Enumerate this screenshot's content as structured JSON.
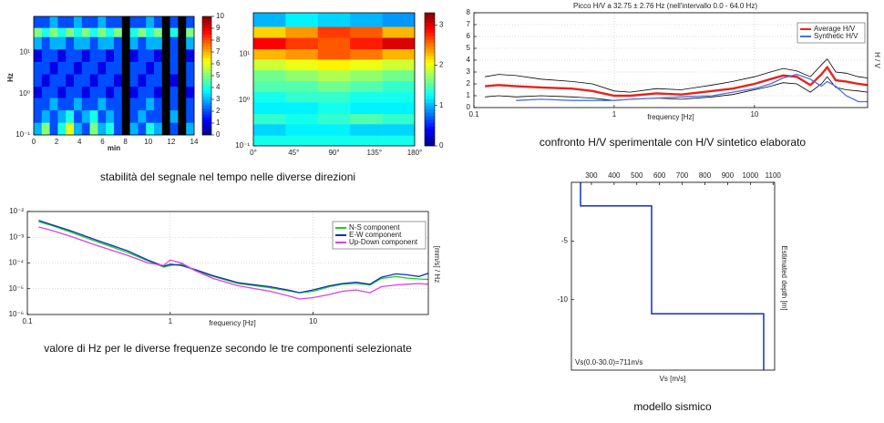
{
  "captions": [
    "stabilità del segnale nel tempo nelle diverse direzioni",
    "confronto H/V sperimentale con H/V sintetico elaborato",
    "valore di Hz per le diverse frequenze secondo le tre componenti selezionate",
    "modello sismico"
  ],
  "chart_data": [
    {
      "type": "heatmap",
      "xlabel": "min",
      "ylabel": "Hz",
      "xlim": [
        0,
        14
      ],
      "xticks": [
        0,
        2,
        4,
        6,
        8,
        10,
        12,
        14
      ],
      "ylim": [
        0.1,
        75
      ],
      "ylog": true,
      "yticks": [
        {
          "value": 0.1,
          "label": "10⁻¹"
        },
        {
          "value": 1,
          "label": "10⁰"
        },
        {
          "value": 10,
          "label": "10¹"
        }
      ],
      "x_bins": [
        0,
        0.7,
        1.4,
        2.1,
        2.8,
        3.5,
        4.2,
        4.9,
        5.6,
        6.3,
        7,
        7.7,
        8.4,
        9.1,
        9.8,
        10.5,
        11.2,
        11.9,
        12.6,
        13.3,
        14
      ],
      "y_bins": [
        0.1,
        0.2,
        0.4,
        0.8,
        1.5,
        3,
        6,
        12,
        24,
        40,
        75
      ],
      "z": [
        [
          3,
          5,
          2,
          4,
          6,
          3,
          2,
          5,
          3,
          4,
          2,
          null,
          3,
          2,
          4,
          3,
          null,
          2,
          null,
          3
        ],
        [
          2,
          3,
          2,
          3,
          4,
          2,
          3,
          4,
          2,
          3,
          2,
          null,
          2,
          3,
          2,
          2,
          null,
          3,
          null,
          2
        ],
        [
          2,
          2,
          3,
          2,
          2,
          3,
          2,
          2,
          3,
          2,
          2,
          null,
          2,
          2,
          3,
          2,
          null,
          2,
          null,
          2
        ],
        [
          1,
          2,
          2,
          1,
          2,
          2,
          1,
          2,
          2,
          1,
          2,
          null,
          1,
          2,
          2,
          1,
          null,
          2,
          null,
          1
        ],
        [
          2,
          1,
          2,
          2,
          1,
          2,
          2,
          1,
          2,
          2,
          1,
          null,
          2,
          1,
          2,
          2,
          null,
          1,
          null,
          2
        ],
        [
          2,
          2,
          1,
          2,
          2,
          1,
          2,
          2,
          1,
          2,
          2,
          null,
          2,
          2,
          1,
          2,
          null,
          2,
          null,
          2
        ],
        [
          1,
          2,
          2,
          1,
          2,
          2,
          1,
          2,
          2,
          1,
          2,
          null,
          1,
          2,
          2,
          1,
          null,
          2,
          null,
          1
        ],
        [
          3,
          2,
          3,
          3,
          2,
          3,
          3,
          2,
          3,
          3,
          2,
          null,
          3,
          2,
          3,
          3,
          null,
          2,
          null,
          3
        ],
        [
          5,
          4,
          5,
          4,
          5,
          4,
          5,
          4,
          5,
          4,
          5,
          null,
          4,
          5,
          4,
          5,
          null,
          4,
          null,
          5
        ],
        [
          2,
          2,
          3,
          2,
          2,
          3,
          2,
          2,
          3,
          2,
          2,
          null,
          2,
          2,
          3,
          2,
          null,
          2,
          null,
          2
        ]
      ],
      "zlim": [
        0,
        10
      ],
      "zticks": [
        0,
        1,
        2,
        3,
        4,
        5,
        6,
        7,
        8,
        9,
        10
      ],
      "colormap": "jet",
      "missing_color": "#000000"
    },
    {
      "type": "heatmap",
      "xlim": [
        0,
        180
      ],
      "xticks": [
        {
          "value": 0,
          "label": "0°"
        },
        {
          "value": 45,
          "label": "45°"
        },
        {
          "value": 90,
          "label": "90°"
        },
        {
          "value": 135,
          "label": "135°"
        },
        {
          "value": 180,
          "label": "180°"
        }
      ],
      "ylim": [
        0.1,
        80
      ],
      "ylog": true,
      "yticks": [
        {
          "value": 0.1,
          "label": "10⁻¹"
        },
        {
          "value": 1,
          "label": "10⁰"
        },
        {
          "value": 10,
          "label": "10¹"
        }
      ],
      "x_bins": [
        0,
        36,
        72,
        108,
        144,
        180
      ],
      "y_bins": [
        0.1,
        0.17,
        0.3,
        0.5,
        0.9,
        1.5,
        2.6,
        4.5,
        7.7,
        13,
        23,
        40,
        80
      ],
      "z": [
        [
          1.3,
          1.3,
          1.3,
          1.3,
          1.3
        ],
        [
          1.1,
          1.2,
          1.2,
          1.1,
          1.1
        ],
        [
          1.4,
          1.3,
          1.4,
          1.5,
          1.4
        ],
        [
          1.2,
          1.2,
          1.3,
          1.2,
          1.2
        ],
        [
          1.3,
          1.4,
          1.4,
          1.3,
          1.3
        ],
        [
          1.5,
          1.5,
          1.6,
          1.5,
          1.4
        ],
        [
          1.6,
          1.7,
          1.8,
          1.7,
          1.6
        ],
        [
          1.9,
          2.0,
          2.1,
          2.0,
          1.9
        ],
        [
          2.3,
          2.4,
          2.6,
          2.5,
          2.3
        ],
        [
          2.9,
          2.7,
          2.6,
          2.8,
          3.0
        ],
        [
          2.2,
          2.4,
          2.7,
          2.6,
          2.3
        ],
        [
          1.0,
          1.2,
          1.1,
          1.0,
          0.9
        ]
      ],
      "zlim": [
        0,
        3.3
      ],
      "zticks": [
        0,
        1,
        2,
        3
      ],
      "colormap": "jet"
    },
    {
      "type": "line",
      "title": "Picco H/V a 32.75 ± 2.76 Hz (nell'intervallo 0.0 - 64.0 Hz)",
      "xlabel": "frequency [Hz]",
      "ylabel": "H / V",
      "xlim": [
        0.1,
        64
      ],
      "xlog": true,
      "xticks": [
        0.1,
        1,
        10
      ],
      "ylim": [
        0,
        8
      ],
      "yticks": [
        0,
        1,
        2,
        3,
        4,
        5,
        6,
        7,
        8
      ],
      "grid": true,
      "legend": "upper right",
      "x": [
        0.12,
        0.15,
        0.2,
        0.3,
        0.5,
        0.7,
        1,
        1.3,
        2,
        3,
        5,
        7,
        10,
        13,
        16,
        20,
        25,
        30,
        33,
        38,
        45,
        55,
        64
      ],
      "series": [
        {
          "color": "#000000",
          "values": [
            2.6,
            2.8,
            2.7,
            2.4,
            2.2,
            2.0,
            1.4,
            1.3,
            1.6,
            1.5,
            1.9,
            2.2,
            2.6,
            3.0,
            3.3,
            3.1,
            2.6,
            3.6,
            4.1,
            3.0,
            2.9,
            2.6,
            2.5
          ]
        },
        {
          "color": "#000000",
          "values": [
            0.9,
            1.0,
            0.9,
            1.0,
            0.9,
            0.8,
            0.6,
            0.7,
            0.8,
            0.7,
            0.9,
            1.1,
            1.5,
            1.8,
            2.1,
            2.0,
            1.3,
            2.0,
            2.6,
            1.7,
            1.5,
            1.4,
            1.3
          ]
        },
        {
          "name": "Average H/V",
          "color": "#e8231c",
          "values": [
            1.8,
            1.9,
            1.8,
            1.7,
            1.6,
            1.4,
            1.0,
            1.0,
            1.2,
            1.1,
            1.4,
            1.6,
            2.0,
            2.4,
            2.7,
            2.6,
            1.9,
            2.8,
            3.4,
            2.3,
            2.2,
            2.0,
            1.9
          ]
        },
        {
          "name": "Synthetic H/V",
          "color": "#4a6fe3",
          "values": [
            null,
            null,
            0.6,
            0.7,
            0.6,
            0.6,
            0.6,
            0.7,
            0.8,
            0.9,
            1.0,
            1.3,
            1.6,
            2.0,
            2.5,
            2.8,
            2.4,
            1.8,
            2.2,
            1.8,
            1.0,
            0.5,
            0.5
          ]
        }
      ]
    },
    {
      "type": "line",
      "xlabel": "frequency [Hz]",
      "ylabel": "[mm/s] / Hz",
      "xlim": [
        0.1,
        64
      ],
      "xlog": true,
      "xticks": [
        0.1,
        1,
        10
      ],
      "ylim": [
        1e-06,
        0.01
      ],
      "ylog": true,
      "yticks": [
        {
          "value": 1e-06,
          "label": "10⁻⁶"
        },
        {
          "value": 1e-05,
          "label": "10⁻⁵"
        },
        {
          "value": 0.0001,
          "label": "10⁻⁴"
        },
        {
          "value": 0.001,
          "label": "10⁻³"
        },
        {
          "value": 0.01,
          "label": "10⁻²"
        }
      ],
      "grid": true,
      "legend": "upper right",
      "x": [
        0.12,
        0.15,
        0.2,
        0.3,
        0.5,
        0.7,
        0.9,
        1,
        1.2,
        1.5,
        2,
        3,
        5,
        7,
        8,
        10,
        13,
        16,
        20,
        25,
        30,
        38,
        45,
        55,
        64
      ],
      "series": [
        {
          "name": "N-S component",
          "color": "#22cc22",
          "values": [
            0.004,
            0.0028,
            0.0016,
            0.0007,
            0.00026,
            0.00012,
            7e-05,
            8e-05,
            9e-05,
            5e-05,
            3e-05,
            1.6e-05,
            1.1e-05,
            8e-06,
            7e-06,
            8e-06,
            1.2e-05,
            1.5e-05,
            1.6e-05,
            1.4e-05,
            2.5e-05,
            3e-05,
            2.6e-05,
            2.4e-05,
            2.3e-05
          ]
        },
        {
          "name": "E-W component",
          "color": "#1030c0",
          "values": [
            0.0045,
            0.003,
            0.0018,
            0.0008,
            0.0003,
            0.00013,
            7.5e-05,
            9e-05,
            8e-05,
            5.5e-05,
            3.2e-05,
            1.7e-05,
            1.2e-05,
            8.5e-06,
            7e-06,
            9e-06,
            1.3e-05,
            1.6e-05,
            1.8e-05,
            1.5e-05,
            2.8e-05,
            3.8e-05,
            3.5e-05,
            3e-05,
            4e-05
          ]
        },
        {
          "name": "Up-Down component",
          "color": "#e040e0",
          "values": [
            0.0025,
            0.0018,
            0.0011,
            0.0005,
            0.0002,
            0.0001,
            8e-05,
            0.00013,
            0.0001,
            5e-05,
            2.5e-05,
            1.3e-05,
            8e-06,
            5e-06,
            4e-06,
            4.5e-06,
            6e-06,
            8e-06,
            9e-06,
            7e-06,
            1.2e-05,
            1.4e-05,
            1.5e-05,
            1.6e-05,
            1.5e-05
          ]
        }
      ]
    },
    {
      "type": "line",
      "xlabel": "Vs [m/s]",
      "ylabel": "Estimated depth [m]",
      "annotation": "Vs(0.0-30.0)=711m/s",
      "xlim": [
        212,
        1107
      ],
      "xticks": [
        300,
        400,
        500,
        600,
        700,
        800,
        900,
        1000,
        1100
      ],
      "xaxis": "top",
      "ylim": [
        -16,
        0
      ],
      "yticks": [
        -5,
        -10
      ],
      "color": "#1f3fcf",
      "x": [
        252,
        252,
        565,
        565,
        1059,
        1059
      ],
      "values": [
        0,
        -2,
        -2,
        -11.2,
        -11.2,
        -16
      ]
    }
  ]
}
